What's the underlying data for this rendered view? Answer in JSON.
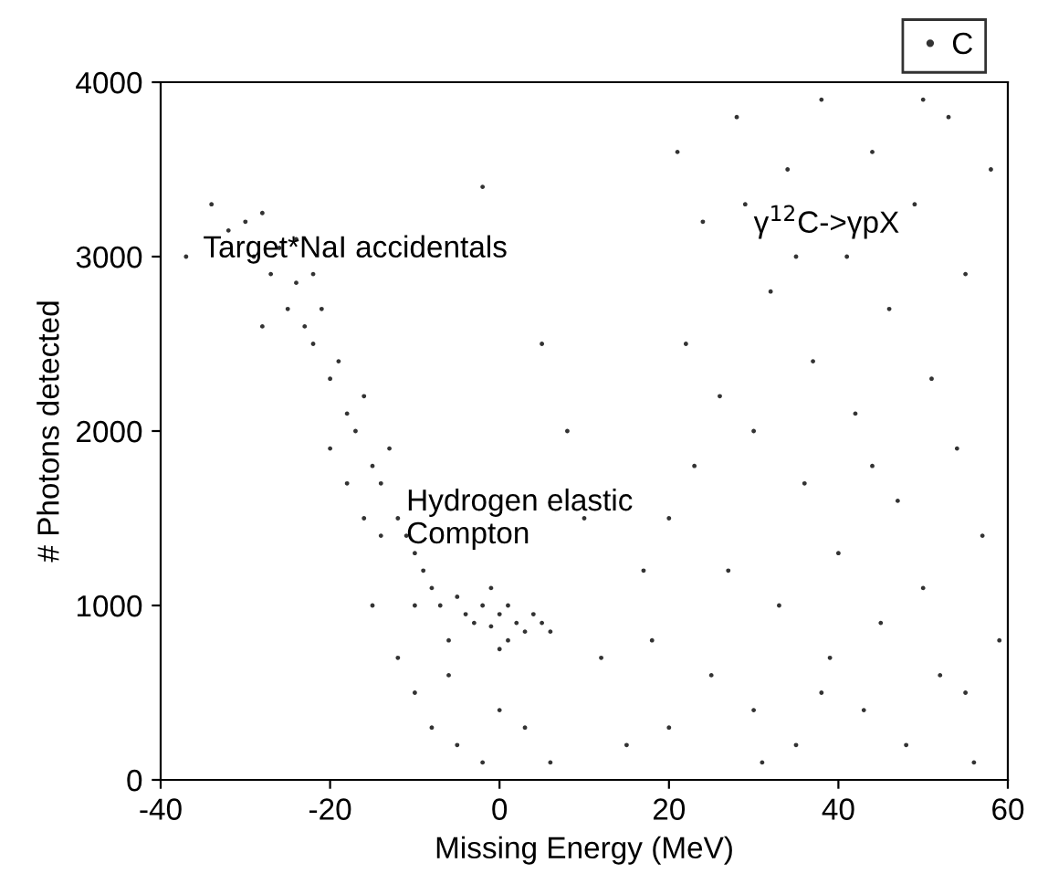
{
  "chart_data": {
    "type": "scatter",
    "xlabel": "Missing Energy (MeV)",
    "ylabel": "# Photons detected",
    "xlim": [
      -40,
      60
    ],
    "xticks": [
      -40,
      -20,
      0,
      20,
      40,
      60
    ],
    "ylim": [
      0,
      4000
    ],
    "yticks": [
      0,
      1000,
      2000,
      3000,
      4000
    ],
    "grid": false,
    "legend": "top right",
    "annotations": [
      "Target*NaI accidentals",
      "Hydrogen elastic\nCompton",
      "γ$^{12}$C->γpX"
    ],
    "series": [
      {
        "name": "C",
        "color": "#333333",
        "x": [
          -34,
          -32,
          -30,
          -29,
          -28,
          -27,
          -26,
          -25,
          -24,
          -23,
          -22,
          -21,
          -20,
          -19,
          -18,
          -17,
          -16,
          -15,
          -14,
          -13,
          -12,
          -11,
          -10,
          -9,
          -8,
          -7,
          -28,
          -22,
          -18,
          -14,
          -10,
          -16,
          -20,
          -24,
          -4,
          -3,
          -2,
          -1,
          0,
          1,
          2,
          3,
          -5,
          4,
          5,
          -1,
          1,
          0,
          6,
          -6,
          -10,
          -8,
          -5,
          -2,
          0,
          3,
          6,
          -12,
          -15,
          -6,
          15,
          18,
          20,
          22,
          24,
          25,
          27,
          28,
          30,
          30,
          32,
          33,
          34,
          35,
          36,
          37,
          38,
          39,
          40,
          41,
          42,
          43,
          44,
          45,
          46,
          47,
          48,
          49,
          50,
          51,
          52,
          53,
          54,
          55,
          56,
          57,
          58,
          59,
          20,
          23,
          26,
          29,
          31,
          35,
          38,
          44,
          50,
          55,
          17,
          21,
          8,
          10,
          5,
          -2,
          12,
          -37
        ],
        "values": [
          3300,
          3150,
          3200,
          3000,
          3250,
          2900,
          3050,
          2700,
          2850,
          2600,
          2500,
          2700,
          2300,
          2400,
          2100,
          2000,
          2200,
          1800,
          1700,
          1900,
          1500,
          1400,
          1300,
          1200,
          1100,
          1000,
          2600,
          2900,
          1700,
          1400,
          1000,
          1500,
          1900,
          3100,
          950,
          900,
          1000,
          880,
          950,
          1000,
          900,
          850,
          1050,
          950,
          900,
          1100,
          800,
          750,
          850,
          800,
          500,
          300,
          200,
          100,
          400,
          300,
          100,
          700,
          1000,
          600,
          200,
          800,
          1500,
          2500,
          3200,
          600,
          1200,
          3800,
          2000,
          400,
          2800,
          1000,
          3500,
          200,
          1700,
          2400,
          3900,
          700,
          1300,
          3000,
          2100,
          400,
          3600,
          900,
          2700,
          1600,
          200,
          3300,
          1100,
          2300,
          600,
          3800,
          1900,
          2900,
          100,
          1400,
          3500,
          800,
          300,
          1800,
          2200,
          3300,
          100,
          3000,
          500,
          1800,
          3900,
          500,
          1200,
          3600,
          2000,
          1500,
          2500,
          3400,
          700,
          3000
        ]
      }
    ]
  }
}
